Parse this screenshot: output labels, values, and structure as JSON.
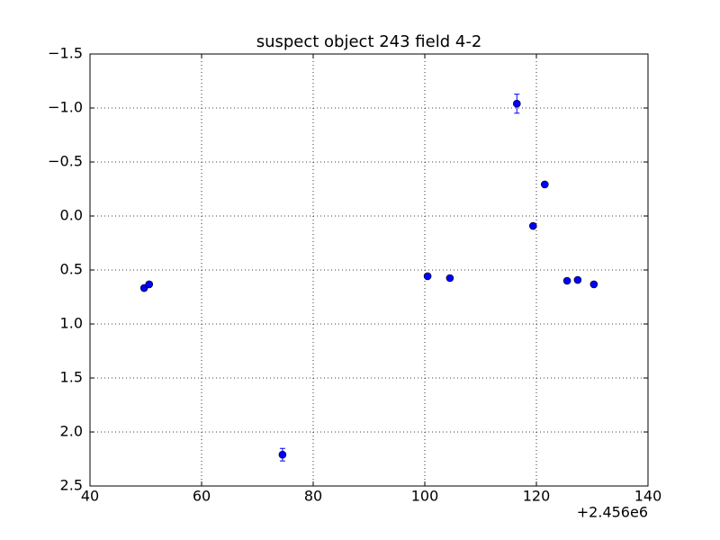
{
  "chart_data": {
    "type": "errorbar-scatter",
    "title": "suspect object 243 field 4-2",
    "x_offset_label": "+2.456e6",
    "x": [
      49.7,
      50.6,
      74.5,
      100.5,
      104.5,
      116.5,
      119.4,
      121.5,
      125.5,
      127.4,
      130.3
    ],
    "values": [
      0.667,
      0.633,
      2.21,
      0.558,
      0.575,
      -1.04,
      0.092,
      -0.292,
      0.6,
      0.592,
      0.633
    ],
    "errors": [
      0.02,
      0.02,
      0.058,
      0.02,
      0.02,
      0.088,
      0.02,
      0.02,
      0.02,
      0.02,
      0.02
    ],
    "color": "#0000ff",
    "xlim": [
      40,
      140
    ],
    "xticks": [
      40,
      60,
      80,
      100,
      120,
      140
    ],
    "ylim": [
      2.5,
      -1.5
    ],
    "yticks": [
      {
        "value": -1.5,
        "label": "−1.5"
      },
      {
        "value": -1.0,
        "label": "−1.0"
      },
      {
        "value": -0.5,
        "label": "−0.5"
      },
      {
        "value": 0,
        "label": "0.0"
      },
      0.5,
      {
        "value": 1,
        "label": "1.0"
      },
      1.5,
      {
        "value": 2,
        "label": "2.0"
      },
      2.5
    ],
    "grid": true
  }
}
